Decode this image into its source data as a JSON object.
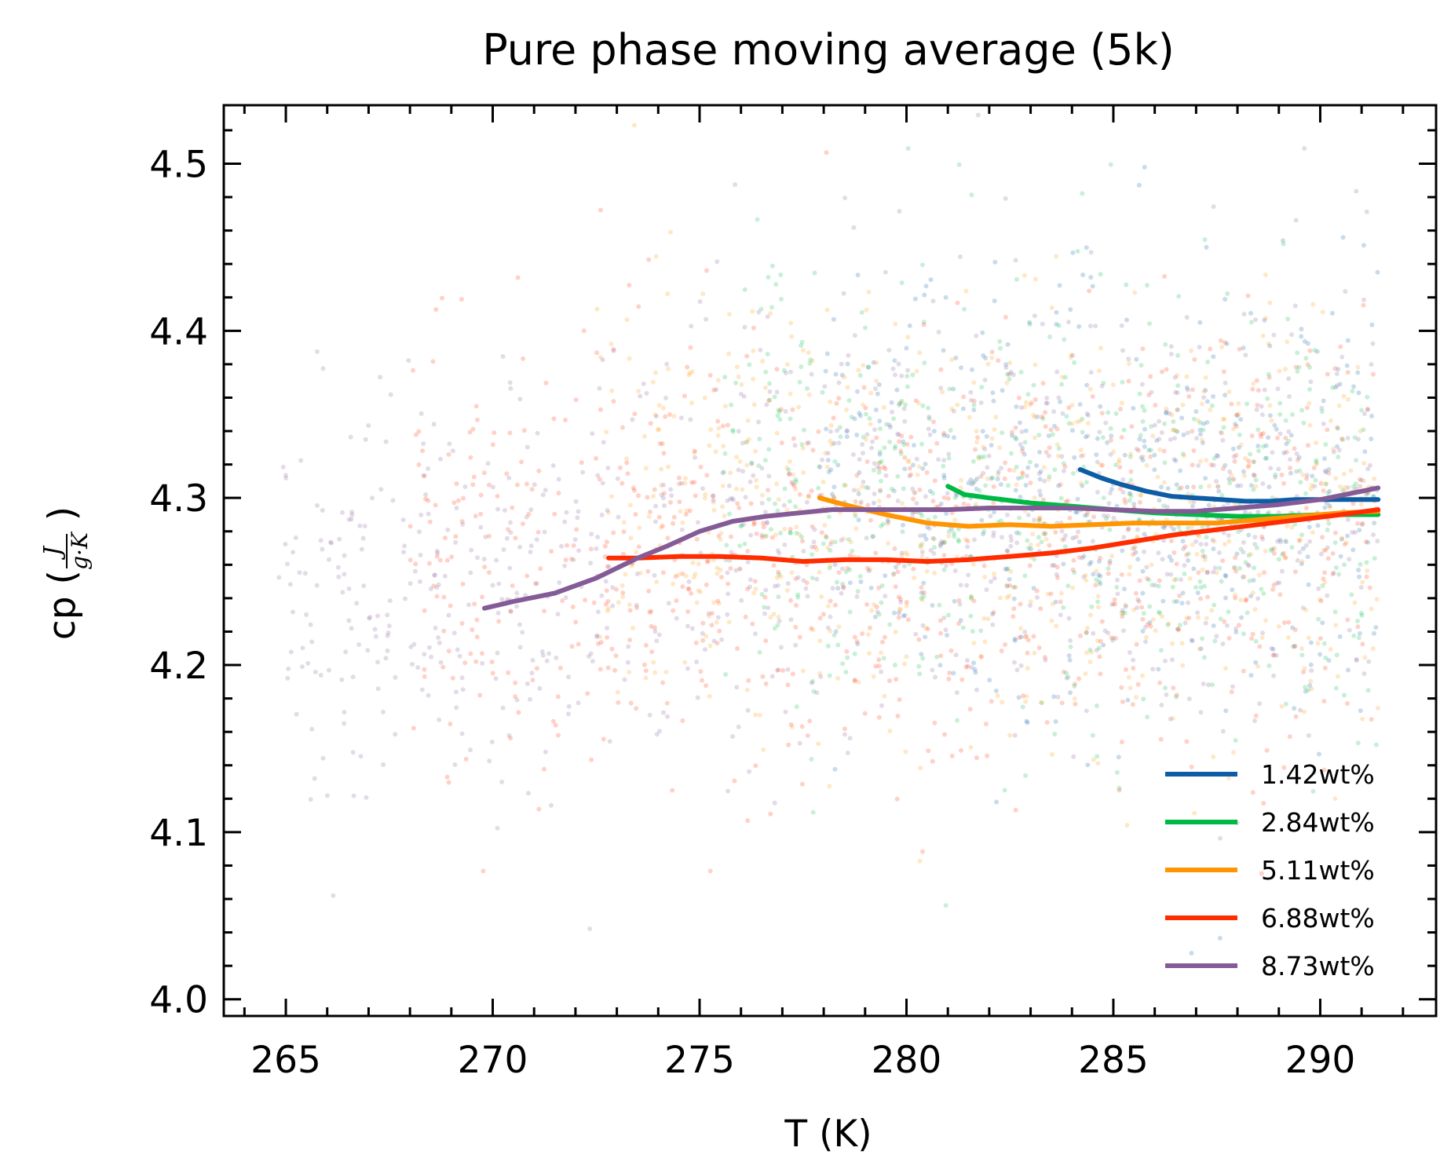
{
  "chart_data": {
    "type": "line",
    "title": "Pure phase moving average (5k)",
    "xlabel": "T (K)",
    "ylabel_prefix": "cp (",
    "ylabel_unit_numerator": "J",
    "ylabel_unit_denominator": "g·K",
    "ylabel_suffix": ")",
    "xlim": [
      263.5,
      292.8
    ],
    "ylim": [
      3.99,
      4.535
    ],
    "x_ticks": [
      "265",
      "270",
      "275",
      "280",
      "285",
      "290"
    ],
    "x_tick_values": [
      265,
      270,
      275,
      280,
      285,
      290
    ],
    "y_ticks": [
      "4.0",
      "4.1",
      "4.2",
      "4.3",
      "4.4",
      "4.5"
    ],
    "y_tick_values": [
      4.0,
      4.1,
      4.2,
      4.3,
      4.4,
      4.5
    ],
    "grid": false,
    "legend_position": "bottom-right",
    "series": [
      {
        "name": "1.42wt%",
        "color": "#0c5da5",
        "scatter_x_range": [
          278,
          291.4
        ],
        "x": [
          284.2,
          284.7,
          285.2,
          285.8,
          286.4,
          287.0,
          287.6,
          288.2,
          288.8,
          289.4,
          290.0,
          290.6,
          291.4
        ],
        "y": [
          4.317,
          4.312,
          4.308,
          4.304,
          4.301,
          4.3,
          4.299,
          4.298,
          4.298,
          4.299,
          4.299,
          4.299,
          4.299
        ]
      },
      {
        "name": "2.84wt%",
        "color": "#00b945",
        "scatter_x_range": [
          275.5,
          291.4
        ],
        "x": [
          281.0,
          281.4,
          282.0,
          283.0,
          284.0,
          285.0,
          286.0,
          287.0,
          288.0,
          289.0,
          290.0,
          291.0,
          291.4
        ],
        "y": [
          4.307,
          4.302,
          4.3,
          4.297,
          4.295,
          4.293,
          4.291,
          4.29,
          4.289,
          4.289,
          4.29,
          4.29,
          4.29
        ]
      },
      {
        "name": "5.11wt%",
        "color": "#ff9500",
        "scatter_x_range": [
          272.5,
          291.4
        ],
        "x": [
          277.9,
          278.5,
          279.5,
          280.5,
          281.5,
          282.5,
          283.5,
          284.5,
          285.5,
          286.5,
          287.5,
          288.5,
          289.5,
          290.5,
          291.4
        ],
        "y": [
          4.3,
          4.296,
          4.29,
          4.285,
          4.283,
          4.284,
          4.283,
          4.284,
          4.285,
          4.285,
          4.285,
          4.287,
          4.289,
          4.291,
          4.292
        ]
      },
      {
        "name": "6.88wt%",
        "color": "#ff2c00",
        "scatter_x_range": [
          268.0,
          291.4
        ],
        "x": [
          272.8,
          273.5,
          274.5,
          275.5,
          276.5,
          277.5,
          278.5,
          279.5,
          280.5,
          281.5,
          282.5,
          283.5,
          284.5,
          285.5,
          286.5,
          287.5,
          288.5,
          289.5,
          290.5,
          291.4
        ],
        "y": [
          4.264,
          4.264,
          4.265,
          4.265,
          4.264,
          4.262,
          4.263,
          4.263,
          4.262,
          4.263,
          4.265,
          4.267,
          4.27,
          4.274,
          4.278,
          4.281,
          4.284,
          4.287,
          4.29,
          4.293
        ]
      },
      {
        "name": "8.73wt%",
        "color": "#845b97",
        "scatter_x_range": [
          264.8,
          291.4
        ],
        "x": [
          269.8,
          270.5,
          271.5,
          272.5,
          273.5,
          274.2,
          275.0,
          275.8,
          276.6,
          277.4,
          278.2,
          279.0,
          280.0,
          281.0,
          282.0,
          283.0,
          284.0,
          285.0,
          286.0,
          287.0,
          288.0,
          289.0,
          290.0,
          290.8,
          291.4
        ],
        "y": [
          4.234,
          4.238,
          4.243,
          4.252,
          4.264,
          4.271,
          4.28,
          4.286,
          4.289,
          4.291,
          4.293,
          4.293,
          4.293,
          4.293,
          4.294,
          4.294,
          4.294,
          4.293,
          4.292,
          4.292,
          4.294,
          4.296,
          4.299,
          4.303,
          4.306
        ]
      }
    ]
  }
}
